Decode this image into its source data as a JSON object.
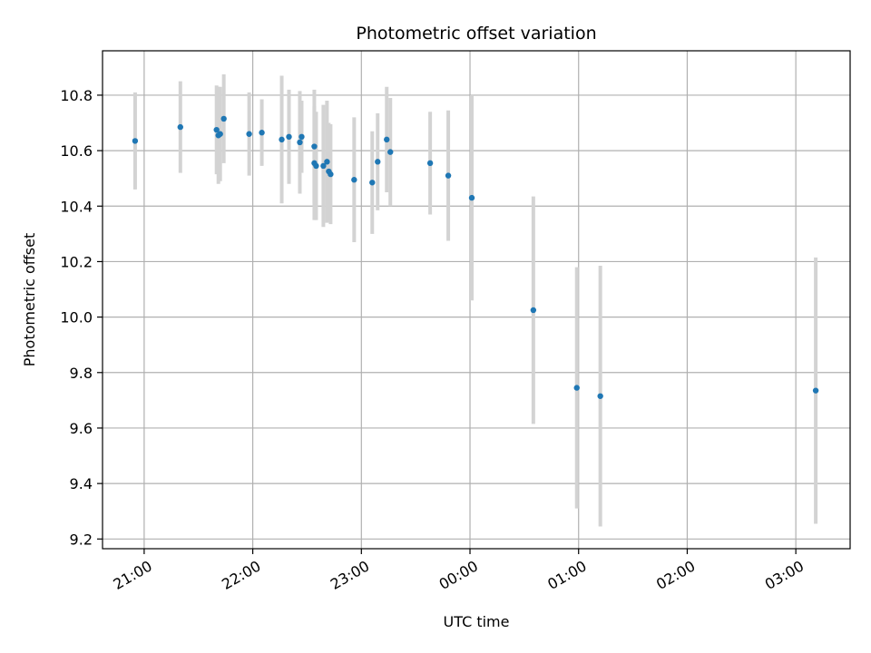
{
  "chart_data": {
    "type": "scatter",
    "title": "Photometric offset variation",
    "xlabel": "UTC time",
    "ylabel": "Photometric offset",
    "x_ticks": [
      "21:00",
      "22:00",
      "23:00",
      "00:00",
      "01:00",
      "02:00",
      "03:00"
    ],
    "y_ticks": [
      "9.2",
      "9.4",
      "9.6",
      "9.8",
      "10.0",
      "10.2",
      "10.4",
      "10.6",
      "10.8"
    ],
    "ylim": [
      9.165,
      10.96
    ],
    "xlim": [
      "20:37",
      "03:30"
    ],
    "grid": true,
    "colors": {
      "point": "#1f77b4",
      "errorbar": "#d3d3d3",
      "grid": "#b0b0b0"
    },
    "points": [
      {
        "time": "20:55",
        "y": 10.635,
        "err": 0.175
      },
      {
        "time": "21:20",
        "y": 10.685,
        "err": 0.165
      },
      {
        "time": "21:40",
        "y": 10.675,
        "err": 0.16
      },
      {
        "time": "21:41",
        "y": 10.655,
        "err": 0.175
      },
      {
        "time": "21:42",
        "y": 10.66,
        "err": 0.17
      },
      {
        "time": "21:44",
        "y": 10.715,
        "err": 0.16
      },
      {
        "time": "21:58",
        "y": 10.66,
        "err": 0.15
      },
      {
        "time": "22:05",
        "y": 10.665,
        "err": 0.12
      },
      {
        "time": "22:16",
        "y": 10.64,
        "err": 0.23
      },
      {
        "time": "22:20",
        "y": 10.65,
        "err": 0.17
      },
      {
        "time": "22:26",
        "y": 10.63,
        "err": 0.185
      },
      {
        "time": "22:27",
        "y": 10.65,
        "err": 0.13
      },
      {
        "time": "22:34",
        "y": 10.615,
        "err": 0.205
      },
      {
        "time": "22:34",
        "y": 10.555,
        "err": 0.205
      },
      {
        "time": "22:35",
        "y": 10.545,
        "err": 0.195
      },
      {
        "time": "22:39",
        "y": 10.545,
        "err": 0.22
      },
      {
        "time": "22:41",
        "y": 10.56,
        "err": 0.22
      },
      {
        "time": "22:42",
        "y": 10.525,
        "err": 0.175
      },
      {
        "time": "22:43",
        "y": 10.515,
        "err": 0.18
      },
      {
        "time": "22:56",
        "y": 10.495,
        "err": 0.225
      },
      {
        "time": "23:06",
        "y": 10.485,
        "err": 0.185
      },
      {
        "time": "23:09",
        "y": 10.56,
        "err": 0.175
      },
      {
        "time": "23:14",
        "y": 10.64,
        "err": 0.19
      },
      {
        "time": "23:16",
        "y": 10.595,
        "err": 0.195
      },
      {
        "time": "23:38",
        "y": 10.555,
        "err": 0.185
      },
      {
        "time": "23:48",
        "y": 10.51,
        "err": 0.235
      },
      {
        "time": "00:01",
        "y": 10.43,
        "err": 0.37
      },
      {
        "time": "00:35",
        "y": 10.025,
        "err": 0.41
      },
      {
        "time": "00:59",
        "y": 9.745,
        "err": 0.435
      },
      {
        "time": "01:12",
        "y": 9.715,
        "err": 0.47
      },
      {
        "time": "03:11",
        "y": 9.735,
        "err": 0.48
      }
    ]
  }
}
